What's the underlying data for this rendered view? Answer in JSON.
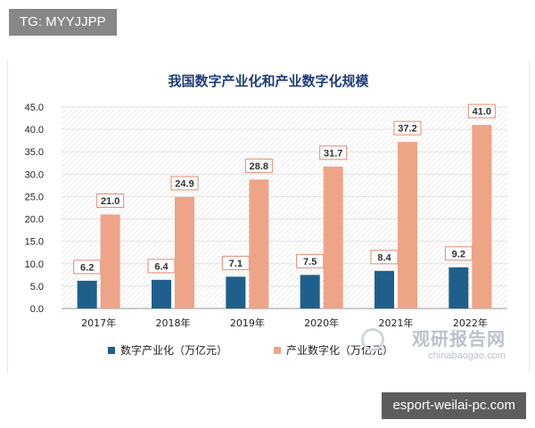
{
  "tag_label": "TG: MYYJJPP",
  "site_label": "esport-weilai-pc.com",
  "watermark": {
    "cn": "观研报告网",
    "en": "chinabaogao.com"
  },
  "colors": {
    "digital_industrialization": "#1f5f8b",
    "industrial_digitalization": "#eea487",
    "label_border": "#e58a72"
  },
  "chart_data": {
    "type": "bar",
    "title": "我国数字产业化和产业数字化规模",
    "categories": [
      "2017年",
      "2018年",
      "2019年",
      "2020年",
      "2021年",
      "2022年"
    ],
    "series": [
      {
        "name": "数字产业化（万亿元）",
        "values": [
          6.2,
          6.4,
          7.1,
          7.5,
          8.4,
          9.2
        ]
      },
      {
        "name": "产业数字化（万亿元）",
        "values": [
          21.0,
          24.9,
          28.8,
          31.7,
          37.2,
          41.0
        ]
      }
    ],
    "ylim": [
      0,
      45
    ],
    "yticks": [
      "0.0",
      "5.0",
      "10.0",
      "15.0",
      "20.0",
      "25.0",
      "30.0",
      "35.0",
      "40.0",
      "45.0"
    ],
    "data_labels": [
      [
        "6.2",
        "6.4",
        "7.1",
        "7.5",
        "8.4",
        "9.2"
      ],
      [
        "21.0",
        "24.9",
        "28.8",
        "31.7",
        "37.2",
        "41.0"
      ]
    ],
    "grid": true,
    "legend": "bottom"
  }
}
